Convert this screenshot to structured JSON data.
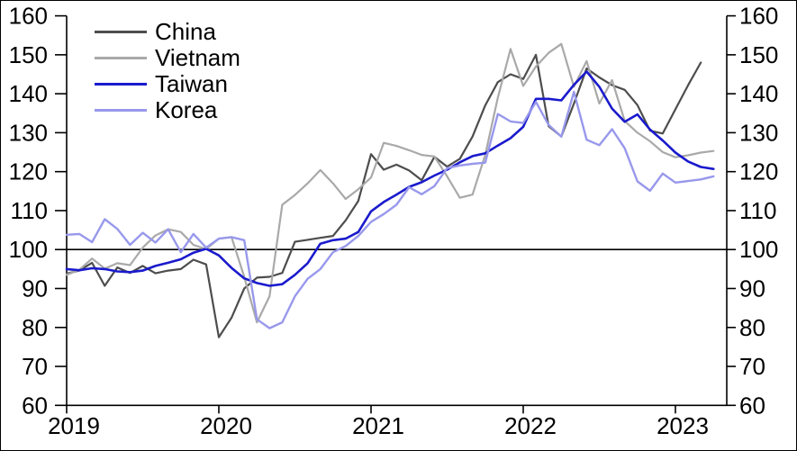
{
  "chart_data": {
    "type": "line",
    "title": "",
    "xlabel": "",
    "ylabel": "",
    "x_axis": {
      "tick_labels": [
        "2019",
        "2020",
        "2021",
        "2022",
        "2023"
      ],
      "start": "2019-01",
      "frequency": "monthly"
    },
    "y_axis_left": {
      "min": 60,
      "max": 160,
      "step": 10,
      "tick_labels": [
        "160",
        "150",
        "140",
        "130",
        "120",
        "110",
        "100",
        "90",
        "80",
        "70",
        "60"
      ]
    },
    "y_axis_right": {
      "min": 60,
      "max": 160,
      "step": 10,
      "tick_labels": [
        "160",
        "150",
        "140",
        "130",
        "120",
        "110",
        "100",
        "90",
        "80",
        "70",
        "60"
      ]
    },
    "reference_line": 100,
    "grid": false,
    "legend_position": "top-left",
    "series": [
      {
        "name": "China",
        "color": "#4d4d4d",
        "width": 2.2,
        "values": [
          93.8,
          94.6,
          96.6,
          90.7,
          95.4,
          94.0,
          95.8,
          93.9,
          94.6,
          95.0,
          97.4,
          96.2,
          77.5,
          82.5,
          90.0,
          92.8,
          93.0,
          94.0,
          102.0,
          102.5,
          103.0,
          103.5,
          107.5,
          112.5,
          124.5,
          120.5,
          121.8,
          120.3,
          117.8,
          123.8,
          121.3,
          123.3,
          129.0,
          137.0,
          143.0,
          145.0,
          143.8,
          150.0,
          131.7,
          129.0,
          137.5,
          146.5,
          144.2,
          142.2,
          141.0,
          137.1,
          130.5,
          129.8,
          136.0,
          142.2,
          148.0
        ]
      },
      {
        "name": "Vietnam",
        "color": "#a9a9a9",
        "width": 2.2,
        "values": [
          93.5,
          94.8,
          97.7,
          95.1,
          96.5,
          96.0,
          100.5,
          103.6,
          105.2,
          104.5,
          101.2,
          100.1,
          102.8,
          103.2,
          93.0,
          81.3,
          88.0,
          111.5,
          114.0,
          117.0,
          120.4,
          117.0,
          113.0,
          115.5,
          118.5,
          127.4,
          126.6,
          125.5,
          124.3,
          123.9,
          118.8,
          113.3,
          114.1,
          124.3,
          139.0,
          151.5,
          142.0,
          147.0,
          150.5,
          152.8,
          141.8,
          148.4,
          137.5,
          143.5,
          133.0,
          130.0,
          127.8,
          125.0,
          123.7,
          124.2,
          124.9,
          125.3
        ]
      },
      {
        "name": "Taiwan",
        "color": "#1a1acd",
        "width": 2.6,
        "values": [
          95.0,
          94.7,
          95.2,
          95.0,
          94.4,
          94.2,
          94.6,
          95.8,
          96.6,
          97.5,
          99.2,
          100.2,
          98.5,
          95.3,
          92.6,
          91.4,
          90.7,
          91.1,
          93.5,
          96.5,
          101.5,
          102.4,
          102.8,
          104.5,
          109.8,
          112.2,
          114.1,
          116.1,
          117.3,
          119.0,
          120.5,
          122.4,
          124.0,
          124.7,
          126.7,
          128.6,
          131.5,
          138.7,
          138.7,
          138.3,
          142.3,
          145.7,
          141.8,
          136.2,
          132.8,
          134.7,
          130.8,
          128.0,
          124.9,
          122.6,
          121.2,
          120.7
        ]
      },
      {
        "name": "Korea",
        "color": "#9898ec",
        "width": 2.4,
        "values": [
          103.8,
          104.0,
          101.9,
          107.8,
          105.3,
          101.2,
          104.3,
          101.8,
          105.2,
          99.3,
          104.0,
          100.5,
          102.8,
          103.2,
          102.4,
          82.1,
          79.8,
          81.3,
          88.0,
          92.5,
          95.0,
          99.3,
          100.9,
          103.5,
          107.1,
          109.1,
          111.5,
          116.0,
          114.2,
          116.3,
          120.9,
          121.6,
          122.0,
          122.3,
          134.8,
          132.9,
          132.5,
          137.9,
          132.0,
          129.0,
          140.5,
          128.2,
          126.8,
          130.9,
          126.0,
          117.5,
          115.1,
          119.5,
          117.2,
          117.6,
          118.0,
          118.8
        ]
      }
    ]
  }
}
